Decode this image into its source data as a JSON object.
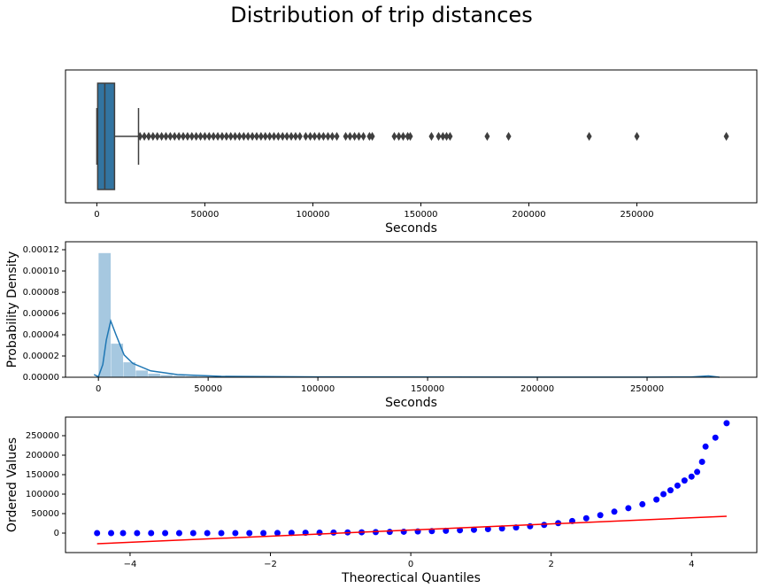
{
  "title": "Distribution of trip distances",
  "chart_data": [
    {
      "type": "box",
      "xlabel": "Seconds",
      "color": "#3274a1",
      "line_color": "#3f3f3f",
      "xlim": [
        -14500,
        305500
      ],
      "xticks": [
        0,
        50000,
        100000,
        150000,
        200000,
        250000
      ],
      "whisker_low": 0,
      "q1": 400,
      "median": 3700,
      "q3": 8200,
      "whisker_high": 19300,
      "outliers": [
        20000,
        22000,
        24000,
        26000,
        28000,
        30000,
        32000,
        34000,
        36000,
        38000,
        40000,
        42000,
        44000,
        46000,
        48000,
        50000,
        52000,
        54000,
        56000,
        58000,
        60000,
        62000,
        64000,
        66000,
        68000,
        70000,
        72000,
        74000,
        76000,
        78000,
        80000,
        82000,
        84000,
        86000,
        88000,
        90000,
        92000,
        94000,
        96700,
        98800,
        100800,
        102900,
        104900,
        107000,
        109000,
        111100,
        115200,
        117200,
        119300,
        121300,
        123400,
        126200,
        127500,
        137700,
        139800,
        141800,
        143900,
        145100,
        154900,
        158200,
        160200,
        161900,
        163500,
        180700,
        190600,
        227900,
        250000,
        291400
      ]
    },
    {
      "type": "histogram",
      "xlabel": "Seconds",
      "ylabel": "Probability Density",
      "color": "#a6c8e0",
      "xlim": [
        -15000,
        300000
      ],
      "xticks": [
        0,
        50000,
        100000,
        150000,
        200000,
        250000
      ],
      "ylim": [
        0,
        0.0001275
      ],
      "yticks": [
        {
          "value": 0,
          "label": "0.00000"
        },
        {
          "value": 2e-05,
          "label": "0.00002"
        },
        {
          "value": 4e-05,
          "label": "0.00004"
        },
        {
          "value": 6e-05,
          "label": "0.00006"
        },
        {
          "value": 8e-05,
          "label": "0.00008"
        },
        {
          "value": 0.0001,
          "label": "0.00010"
        },
        {
          "value": 0.00012,
          "label": "0.00012"
        }
      ],
      "bins": [
        0,
        5640,
        11280,
        16920,
        22560,
        28200,
        33840,
        39480,
        45120,
        50760,
        56400,
        62040,
        67680,
        73320,
        78960,
        84600,
        90240,
        95880,
        101520,
        107160,
        112800,
        118440,
        124080,
        129720,
        135360,
        141000,
        146640,
        152280,
        157920,
        163560,
        169200,
        174840,
        180480,
        186120,
        191760,
        197400,
        203040,
        208680,
        214320,
        219960,
        225600,
        231240,
        236880,
        242520,
        248160,
        253800,
        259440,
        265080,
        270720,
        276360,
        282000
      ],
      "values": [
        0.000117,
        3.17e-05,
        1.42e-05,
        6.5e-06,
        3.5e-06,
        2.2e-06,
        1.5e-06,
        1.1e-06,
        8e-07,
        6e-07,
        5e-07,
        4e-07,
        3e-07,
        3e-07,
        2e-07,
        2e-07,
        2e-07,
        1e-07,
        1e-07,
        1e-07,
        1e-07,
        1e-07,
        1e-07,
        1e-07,
        1e-07,
        5e-08,
        5e-08,
        5e-08,
        5e-08,
        5e-08,
        5e-08,
        5e-08,
        5e-08,
        5e-08,
        5e-08,
        2e-08,
        2e-08,
        2e-08,
        2e-08,
        2e-08,
        2e-08,
        2e-08,
        2e-08,
        2e-08,
        2e-08,
        2e-08,
        2e-08,
        2e-08,
        2e-08,
        5e-08
      ],
      "kde": {
        "color": "#1f77b4",
        "x": [
          -2000,
          0,
          2000,
          3600,
          5600,
          8000,
          11700,
          15700,
          23800,
          36000,
          56000,
          100000,
          150000,
          200000,
          250000,
          270000,
          278000,
          283000
        ],
        "y": [
          2.5e-06,
          5e-07,
          1.2e-05,
          3.5e-05,
          5.3e-05,
          4e-05,
          2.1e-05,
          1.3e-05,
          6e-06,
          2.5e-06,
          8e-07,
          3e-07,
          2e-07,
          1e-07,
          1e-07,
          2e-07,
          1.2e-06,
          0
        ]
      }
    },
    {
      "type": "scatter",
      "xlabel": "Theorectical Quantiles",
      "ylabel": "Ordered Values",
      "color": "#0000ff",
      "xlim": [
        -4.92,
        4.93
      ],
      "xticks": [
        {
          "value": -4,
          "label": "−4"
        },
        {
          "value": -2,
          "label": "−2"
        },
        0,
        2,
        4
      ],
      "ylim": [
        -50000,
        297700
      ],
      "yticks": [
        0,
        50000,
        100000,
        150000,
        200000,
        250000
      ],
      "x": [
        -4.47,
        -4.27,
        -4.1,
        -3.9,
        -3.7,
        -3.5,
        -3.3,
        -3.1,
        -2.9,
        -2.7,
        -2.5,
        -2.3,
        -2.1,
        -1.9,
        -1.7,
        -1.5,
        -1.3,
        -1.1,
        -0.9,
        -0.7,
        -0.5,
        -0.3,
        -0.1,
        0.1,
        0.3,
        0.5,
        0.7,
        0.9,
        1.1,
        1.3,
        1.5,
        1.7,
        1.9,
        2.1,
        2.3,
        2.5,
        2.7,
        2.9,
        3.1,
        3.3,
        3.5,
        3.6,
        3.7,
        3.8,
        3.9,
        4.0,
        4.08,
        4.15,
        4.2,
        4.34,
        4.5
      ],
      "y": [
        0,
        0,
        0,
        0,
        0,
        0,
        0,
        0,
        0,
        0,
        0,
        0,
        0,
        300,
        600,
        900,
        1200,
        1500,
        1800,
        2100,
        2500,
        3000,
        3500,
        4200,
        5000,
        6000,
        7200,
        8600,
        10200,
        12000,
        14500,
        17500,
        21000,
        25500,
        31000,
        38000,
        46000,
        55000,
        64000,
        74000,
        86000,
        100000,
        110000,
        122000,
        135000,
        145000,
        157000,
        183000,
        222000,
        245000,
        282000
      ],
      "fit_line": {
        "color": "#ff0000",
        "x": [
          -4.47,
          4.5
        ],
        "y": [
          -27300,
          43200
        ]
      }
    }
  ]
}
